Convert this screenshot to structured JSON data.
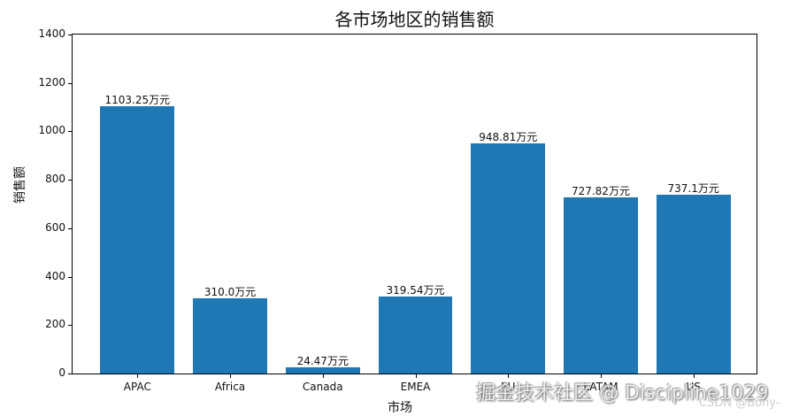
{
  "chart_data": {
    "type": "bar",
    "title": "各市场地区的销售额",
    "xlabel": "市场",
    "ylabel": "销售额",
    "categories": [
      "APAC",
      "Africa",
      "Canada",
      "EMEA",
      "EU",
      "LATAM",
      "US"
    ],
    "values": [
      1103.25,
      310.0,
      24.47,
      319.54,
      948.81,
      727.82,
      737.1
    ],
    "bar_labels": [
      "1103.25万元",
      "310.0万元",
      "24.47万元",
      "319.54万元",
      "948.81万元",
      "727.82万元",
      "737.1万元"
    ],
    "ylim": [
      0,
      1400
    ],
    "yticks": [
      0,
      200,
      400,
      600,
      800,
      1000,
      1200,
      1400
    ],
    "bar_color": "#1f77b4",
    "grid": false,
    "legend": null
  },
  "watermarks": {
    "primary": "掘金技术社区 @ Discipline1029",
    "secondary": "CSDN @Bony-"
  }
}
